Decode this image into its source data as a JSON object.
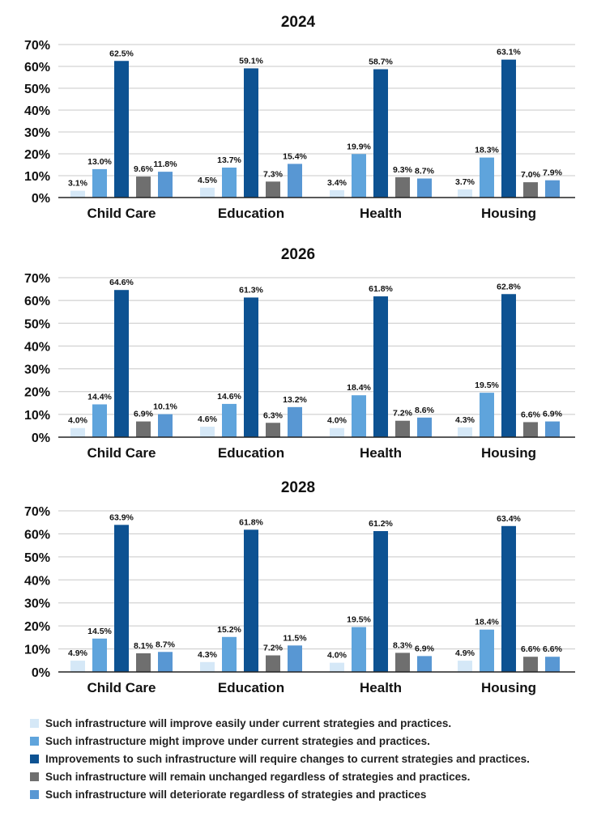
{
  "colors": {
    "series": [
      "#d5e8f7",
      "#5fa4dc",
      "#0d5292",
      "#6f6f6f",
      "#5897d3"
    ],
    "grid": "#c8c8c8",
    "axis": "#222222"
  },
  "chart_data": [
    {
      "type": "bar",
      "title": "2024",
      "categories": [
        "Child Care",
        "Education",
        "Health",
        "Housing"
      ],
      "ylim": [
        0,
        70
      ],
      "yticks": [
        0,
        10,
        20,
        30,
        40,
        50,
        60,
        70
      ],
      "tick_suffix": "%",
      "grid": true,
      "series": [
        {
          "name": "Such infrastructure will improve easily under current strategies and practices.",
          "values": [
            3.1,
            4.5,
            3.4,
            3.7
          ]
        },
        {
          "name": "Such infrastructure might improve under current strategies and practices.",
          "values": [
            13.0,
            13.7,
            19.9,
            18.3
          ]
        },
        {
          "name": "Improvements to such infrastructure will require changes to current strategies and practices.",
          "values": [
            62.5,
            59.1,
            58.7,
            63.1
          ]
        },
        {
          "name": "Such infrastructure will remain unchanged regardless of strategies and practices.",
          "values": [
            9.6,
            7.3,
            9.3,
            7.0
          ]
        },
        {
          "name": "Such infrastructure will deteriorate regardless of strategies and practices",
          "values": [
            11.8,
            15.4,
            8.7,
            7.9
          ]
        }
      ]
    },
    {
      "type": "bar",
      "title": "2026",
      "categories": [
        "Child Care",
        "Education",
        "Health",
        "Housing"
      ],
      "ylim": [
        0,
        70
      ],
      "yticks": [
        0,
        10,
        20,
        30,
        40,
        50,
        60,
        70
      ],
      "tick_suffix": "%",
      "grid": true,
      "series": [
        {
          "name": "Such infrastructure will improve easily under current strategies and practices.",
          "values": [
            4.0,
            4.6,
            4.0,
            4.3
          ]
        },
        {
          "name": "Such infrastructure might improve under current strategies and practices.",
          "values": [
            14.4,
            14.6,
            18.4,
            19.5
          ]
        },
        {
          "name": "Improvements to such infrastructure will require changes to current strategies and practices.",
          "values": [
            64.6,
            61.3,
            61.8,
            62.8
          ]
        },
        {
          "name": "Such infrastructure will remain unchanged regardless of strategies and practices.",
          "values": [
            6.9,
            6.3,
            7.2,
            6.6
          ]
        },
        {
          "name": "Such infrastructure will deteriorate regardless of strategies and practices",
          "values": [
            10.1,
            13.2,
            8.6,
            6.9
          ]
        }
      ]
    },
    {
      "type": "bar",
      "title": "2028",
      "categories": [
        "Child Care",
        "Education",
        "Health",
        "Housing"
      ],
      "ylim": [
        0,
        70
      ],
      "yticks": [
        0,
        10,
        20,
        30,
        40,
        50,
        60,
        70
      ],
      "tick_suffix": "%",
      "grid": true,
      "series": [
        {
          "name": "Such infrastructure will improve easily under current strategies and practices.",
          "values": [
            4.9,
            4.3,
            4.0,
            4.9
          ]
        },
        {
          "name": "Such infrastructure might improve under current strategies and practices.",
          "values": [
            14.5,
            15.2,
            19.5,
            18.4
          ]
        },
        {
          "name": "Improvements to such infrastructure will require changes to current strategies and practices.",
          "values": [
            63.9,
            61.8,
            61.2,
            63.4
          ]
        },
        {
          "name": "Such infrastructure will remain unchanged regardless of strategies and practices.",
          "values": [
            8.1,
            7.2,
            8.3,
            6.6
          ]
        },
        {
          "name": "Such infrastructure will deteriorate regardless of strategies and practices",
          "values": [
            8.7,
            11.5,
            6.9,
            6.6
          ]
        }
      ]
    }
  ],
  "legend": [
    {
      "label": "Such infrastructure will improve easily under current strategies and practices.",
      "color": "#d5e8f7"
    },
    {
      "label": "Such infrastructure might improve under current strategies and practices.",
      "color": "#5fa4dc"
    },
    {
      "label": "Improvements to such infrastructure will require changes to current strategies and practices.",
      "color": "#0d5292"
    },
    {
      "label": "Such infrastructure will remain unchanged regardless of strategies and practices.",
      "color": "#6f6f6f"
    },
    {
      "label": "Such infrastructure will deteriorate regardless of strategies and practices",
      "color": "#5897d3"
    }
  ]
}
